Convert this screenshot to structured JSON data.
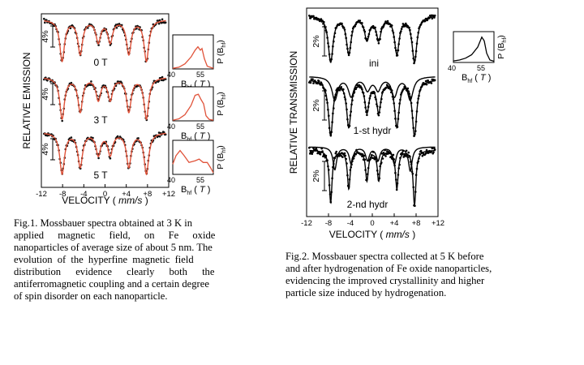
{
  "chart_data": [
    {
      "type": "line",
      "xlabel": "VELOCITY",
      "xunit": "mm/s",
      "ylabel": "RELATIVE EMISSION",
      "xlim": [
        -12,
        12
      ],
      "xticks": [
        "-12",
        "-8",
        "-4",
        "0",
        "+4",
        "+8",
        "+12"
      ],
      "scale_label": "4%",
      "series": [
        {
          "name": "0 T",
          "peaks": [
            -8.3,
            -4.8,
            -1.3,
            1.0,
            4.6,
            8.0
          ]
        },
        {
          "name": "3 T",
          "peaks": [
            -8.3,
            -4.8,
            -1.3,
            1.0,
            4.6,
            8.0
          ]
        },
        {
          "name": "5 T",
          "peaks": [
            -8.3,
            -4.8,
            -1.3,
            1.0,
            4.6,
            8.0
          ]
        }
      ],
      "line_color": "#e0533a",
      "insets": [
        {
          "xlabel": "B",
          "xlabel_sub": "hf",
          "xunit": "T",
          "ylabel": "P (B",
          "ylabel_sub": "hf",
          "ylabel_end": ")",
          "xticks": [
            "40",
            "55"
          ]
        },
        {
          "xlabel": "B",
          "xlabel_sub": "hf",
          "xunit": "T",
          "ylabel": "P (B",
          "ylabel_sub": "hf",
          "ylabel_end": ")",
          "xticks": [
            "40",
            "55"
          ]
        },
        {
          "xlabel": "B",
          "xlabel_sub": "hf",
          "xunit": "T",
          "ylabel": "P (B",
          "ylabel_sub": "hf",
          "ylabel_end": ")",
          "xticks": [
            "40",
            "55"
          ]
        }
      ]
    },
    {
      "type": "line",
      "xlabel": "VELOCITY",
      "xunit": "mm/s",
      "ylabel": "RELATIVE TRANSMISSION",
      "xlim": [
        -12,
        12
      ],
      "xticks": [
        "-12",
        "-8",
        "-4",
        "0",
        "+4",
        "+8",
        "+12"
      ],
      "scale_label": "2%",
      "series": [
        {
          "name": "ini",
          "peaks": [
            -7.8,
            -4.4,
            -1.0,
            1.2,
            4.6,
            7.9
          ]
        },
        {
          "name": "1-st hydr",
          "peaks": [
            -7.8,
            -4.4,
            -1.0,
            1.2,
            4.6,
            7.9
          ]
        },
        {
          "name": "2-nd hydr",
          "peaks": [
            -7.8,
            -4.4,
            -1.0,
            1.2,
            4.6,
            7.9
          ]
        }
      ],
      "insets": [
        {
          "xlabel": "B",
          "xlabel_sub": "hf",
          "xunit": "T",
          "ylabel": "P (B",
          "ylabel_sub": "hf",
          "ylabel_end": ")",
          "xticks": [
            "40",
            "55"
          ]
        }
      ]
    }
  ],
  "captions": {
    "fig1": [
      "Fig.1. Mossbauer spectra obtained at 3 K in",
      "applied magnetic field, on Fe oxide",
      "nanoparticles of average size of about 5 nm. The",
      "evolution of the hyperfine magnetic field",
      "distribution evidence clearly both the",
      "antiferromagnetic coupling and a certain degree",
      "of spin disorder on each nanoparticle."
    ],
    "fig2": [
      "Fig.2. Mossbauer spectra collected at 5 K before",
      "and after hydrogenation of Fe oxide nanoparticles,",
      "evidencing the improved crystallinity and higher",
      "particle size induced by hydrogenation."
    ]
  }
}
